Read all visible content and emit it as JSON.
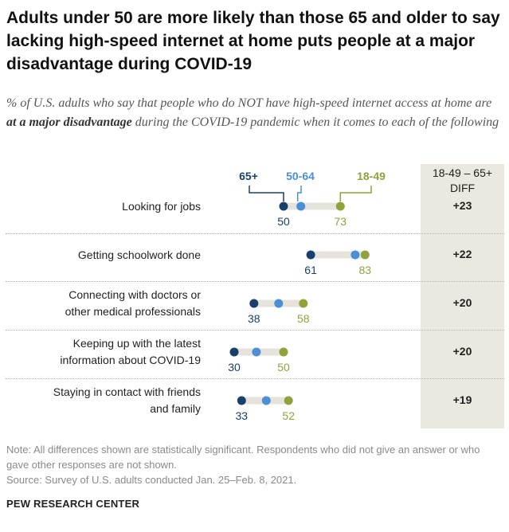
{
  "title": "Adults under 50 are more likely than those 65 and older to say lacking high-speed internet at home puts people at a major disadvantage during COVID-19",
  "subtitle": {
    "before": "% of U.S. adults who say that people who do NOT have high-speed internet access at home are ",
    "emphasis": "at a major disadvantage",
    "after": " during the COVID-19 pandemic when it comes to each of the following"
  },
  "diff_header": {
    "line1": "18-49 – 65+",
    "line2": "DIFF"
  },
  "colors": {
    "age_65_plus": "#1a3f6b",
    "age_50_64": "#4c8fd6",
    "age_18_49": "#8fa33a",
    "bar": "#e6e3dc",
    "diff_band": "#ebe8df"
  },
  "chart_data": {
    "type": "dot",
    "series": [
      {
        "name": "65+",
        "values": [
          50,
          61,
          38,
          30,
          33
        ]
      },
      {
        "name": "50-64",
        "values": [
          57,
          79,
          48,
          39,
          43
        ]
      },
      {
        "name": "18-49",
        "values": [
          73,
          83,
          58,
          50,
          52
        ]
      }
    ],
    "categories": [
      [
        "Looking for jobs"
      ],
      [
        "Getting schoolwork done"
      ],
      [
        "Connecting with doctors or",
        "other medical professionals"
      ],
      [
        "Keeping up with the latest",
        "information about COVID-19"
      ],
      [
        "Staying in contact with friends",
        "and family"
      ]
    ],
    "diff": [
      "+23",
      "+22",
      "+20",
      "+20",
      "+19"
    ],
    "labeled_series": [
      "65+",
      "18-49"
    ]
  },
  "notes": {
    "note": "Note: All differences shown are statistically significant. Respondents who did not give an answer or who gave other responses are not shown.",
    "source": "Source: Survey of U.S. adults conducted Jan. 25–Feb. 8, 2021."
  },
  "brand": "PEW RESEARCH CENTER"
}
